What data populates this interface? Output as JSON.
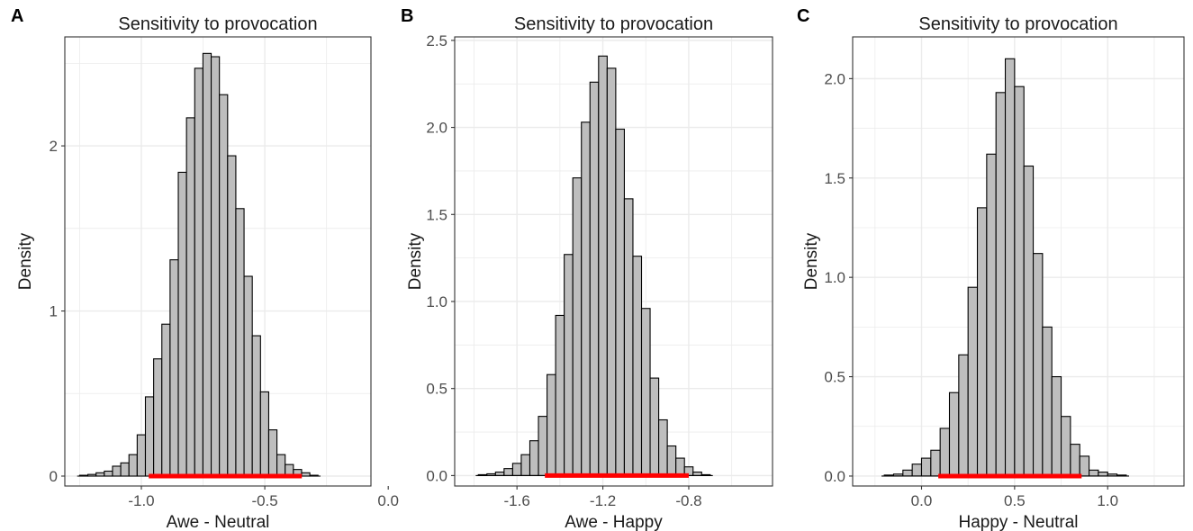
{
  "figure": {
    "bar_fill": "#bebebe",
    "bar_stroke": "#000000",
    "interval_color": "#ff0000",
    "grid_color": "#ebebeb",
    "panel_border": "#333333"
  },
  "chart_data": [
    {
      "type": "bar",
      "panel_label": "A",
      "title": "Sensitivity to provocation",
      "xlabel": "Awe - Neutral",
      "ylabel": "Density",
      "xlim": [
        -1.31,
        -0.07
      ],
      "ylim": [
        -0.06,
        2.66
      ],
      "x_ticks": [
        -1.0,
        -0.5,
        0.0
      ],
      "x_tick_labels": [
        "-1.0",
        "-0.5",
        "0.0"
      ],
      "y_ticks": [
        0,
        1,
        2
      ],
      "y_tick_labels": [
        "0",
        "1",
        "2"
      ],
      "bin_width": 0.0333,
      "bin_start": -1.25,
      "densities": [
        0.005,
        0.01,
        0.02,
        0.03,
        0.06,
        0.08,
        0.13,
        0.25,
        0.48,
        0.71,
        0.92,
        1.31,
        1.84,
        2.17,
        2.47,
        2.56,
        2.54,
        2.31,
        1.94,
        1.62,
        1.21,
        0.85,
        0.51,
        0.28,
        0.13,
        0.07,
        0.04,
        0.02,
        0.005
      ],
      "credible_interval": [
        -0.97,
        -0.35
      ]
    },
    {
      "type": "bar",
      "panel_label": "B",
      "title": "Sensitivity to provocation",
      "xlabel": "Awe - Happy",
      "ylabel": "Density",
      "xlim": [
        -1.89,
        -0.41
      ],
      "ylim": [
        -0.06,
        2.52
      ],
      "x_ticks": [
        -1.6,
        -1.2,
        -0.8
      ],
      "x_tick_labels": [
        "-1.6",
        "-1.2",
        "-0.8"
      ],
      "y_ticks": [
        0.0,
        0.5,
        1.0,
        1.5,
        2.0,
        2.5
      ],
      "y_tick_labels": [
        "0.0",
        "0.5",
        "1.0",
        "1.5",
        "2.0",
        "2.5"
      ],
      "bin_width": 0.04,
      "bin_start": -1.78,
      "densities": [
        0.005,
        0.01,
        0.02,
        0.04,
        0.07,
        0.12,
        0.2,
        0.34,
        0.58,
        0.92,
        1.27,
        1.71,
        2.03,
        2.26,
        2.41,
        2.34,
        1.99,
        1.59,
        1.26,
        0.96,
        0.56,
        0.32,
        0.17,
        0.1,
        0.05,
        0.02,
        0.005
      ],
      "credible_interval": [
        -1.47,
        -0.8
      ]
    },
    {
      "type": "bar",
      "panel_label": "C",
      "title": "Sensitivity to provocation",
      "xlabel": "Happy - Neutral",
      "ylabel": "Density",
      "xlim": [
        -0.37,
        1.41
      ],
      "ylim": [
        -0.05,
        2.21
      ],
      "x_ticks": [
        0.0,
        0.5,
        1.0
      ],
      "x_tick_labels": [
        "0.0",
        "0.5",
        "1.0"
      ],
      "y_ticks": [
        0.0,
        0.5,
        1.0,
        1.5,
        2.0
      ],
      "y_tick_labels": [
        "0.0",
        "0.5",
        "1.0",
        "1.5",
        "2.0"
      ],
      "bin_width": 0.05,
      "bin_start": -0.2,
      "densities": [
        0.005,
        0.01,
        0.03,
        0.06,
        0.09,
        0.13,
        0.24,
        0.42,
        0.61,
        0.95,
        1.35,
        1.62,
        1.93,
        2.1,
        1.96,
        1.56,
        1.12,
        0.75,
        0.5,
        0.3,
        0.16,
        0.1,
        0.03,
        0.02,
        0.01,
        0.005
      ],
      "credible_interval": [
        0.09,
        0.86
      ]
    }
  ]
}
